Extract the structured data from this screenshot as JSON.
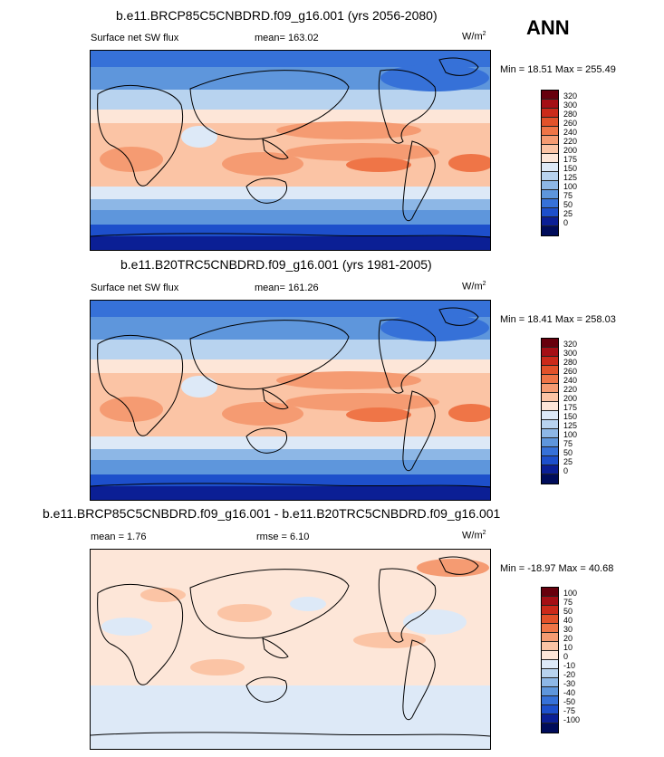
{
  "season": "ANN",
  "panels": [
    {
      "title": "b.e11.BRCP85C5CNBDRD.f09_g16.001 (yrs 2056-2080)",
      "left_label": "Surface net SW flux",
      "center_label": "mean= 163.02",
      "units_base": "W/m",
      "units_sup": "2",
      "minmax": "Min =  18.51 Max = 255.49",
      "cbar_levels": [
        "320",
        "300",
        "280",
        "260",
        "240",
        "220",
        "200",
        "175",
        "150",
        "125",
        "100",
        "75",
        "50",
        "25",
        "0"
      ]
    },
    {
      "title": "b.e11.B20TRC5CNBDRD.f09_g16.001 (yrs 1981-2005)",
      "left_label": "Surface net SW flux",
      "center_label": "mean= 161.26",
      "units_base": "W/m",
      "units_sup": "2",
      "minmax": "Min =  18.41 Max = 258.03",
      "cbar_levels": [
        "320",
        "300",
        "280",
        "260",
        "240",
        "220",
        "200",
        "175",
        "150",
        "125",
        "100",
        "75",
        "50",
        "25",
        "0"
      ]
    },
    {
      "title": "b.e11.BRCP85C5CNBDRD.f09_g16.001 - b.e11.B20TRC5CNBDRD.f09_g16.001",
      "left_label": "mean =   1.76",
      "center_label": "rmse =   6.10",
      "units_base": "W/m",
      "units_sup": "2",
      "minmax": "Min = -18.97 Max =  40.68",
      "cbar_levels": [
        "100",
        "75",
        "50",
        "40",
        "30",
        "20",
        "10",
        "0",
        "-10",
        "-20",
        "-30",
        "-40",
        "-50",
        "-75",
        "-100"
      ]
    }
  ],
  "colors": {
    "abs_scale": [
      "#67000d",
      "#a50f15",
      "#cb2a1a",
      "#e2522a",
      "#ef7547",
      "#f59b72",
      "#fbc4a5",
      "#fde6d8",
      "#dde9f7",
      "#b8d3ef",
      "#8db7e6",
      "#5e96dc",
      "#3671d8",
      "#1d4fcb",
      "#0b1f95",
      "#000c5a"
    ],
    "diff_scale": [
      "#67000d",
      "#a50f15",
      "#cb2a1a",
      "#e2522a",
      "#ef7547",
      "#f59b72",
      "#fbc4a5",
      "#fde6d8",
      "#dde9f7",
      "#b8d3ef",
      "#8db7e6",
      "#5e96dc",
      "#3671d8",
      "#1d4fcb",
      "#0b1f95",
      "#000c5a"
    ],
    "land_line": "#000000"
  }
}
